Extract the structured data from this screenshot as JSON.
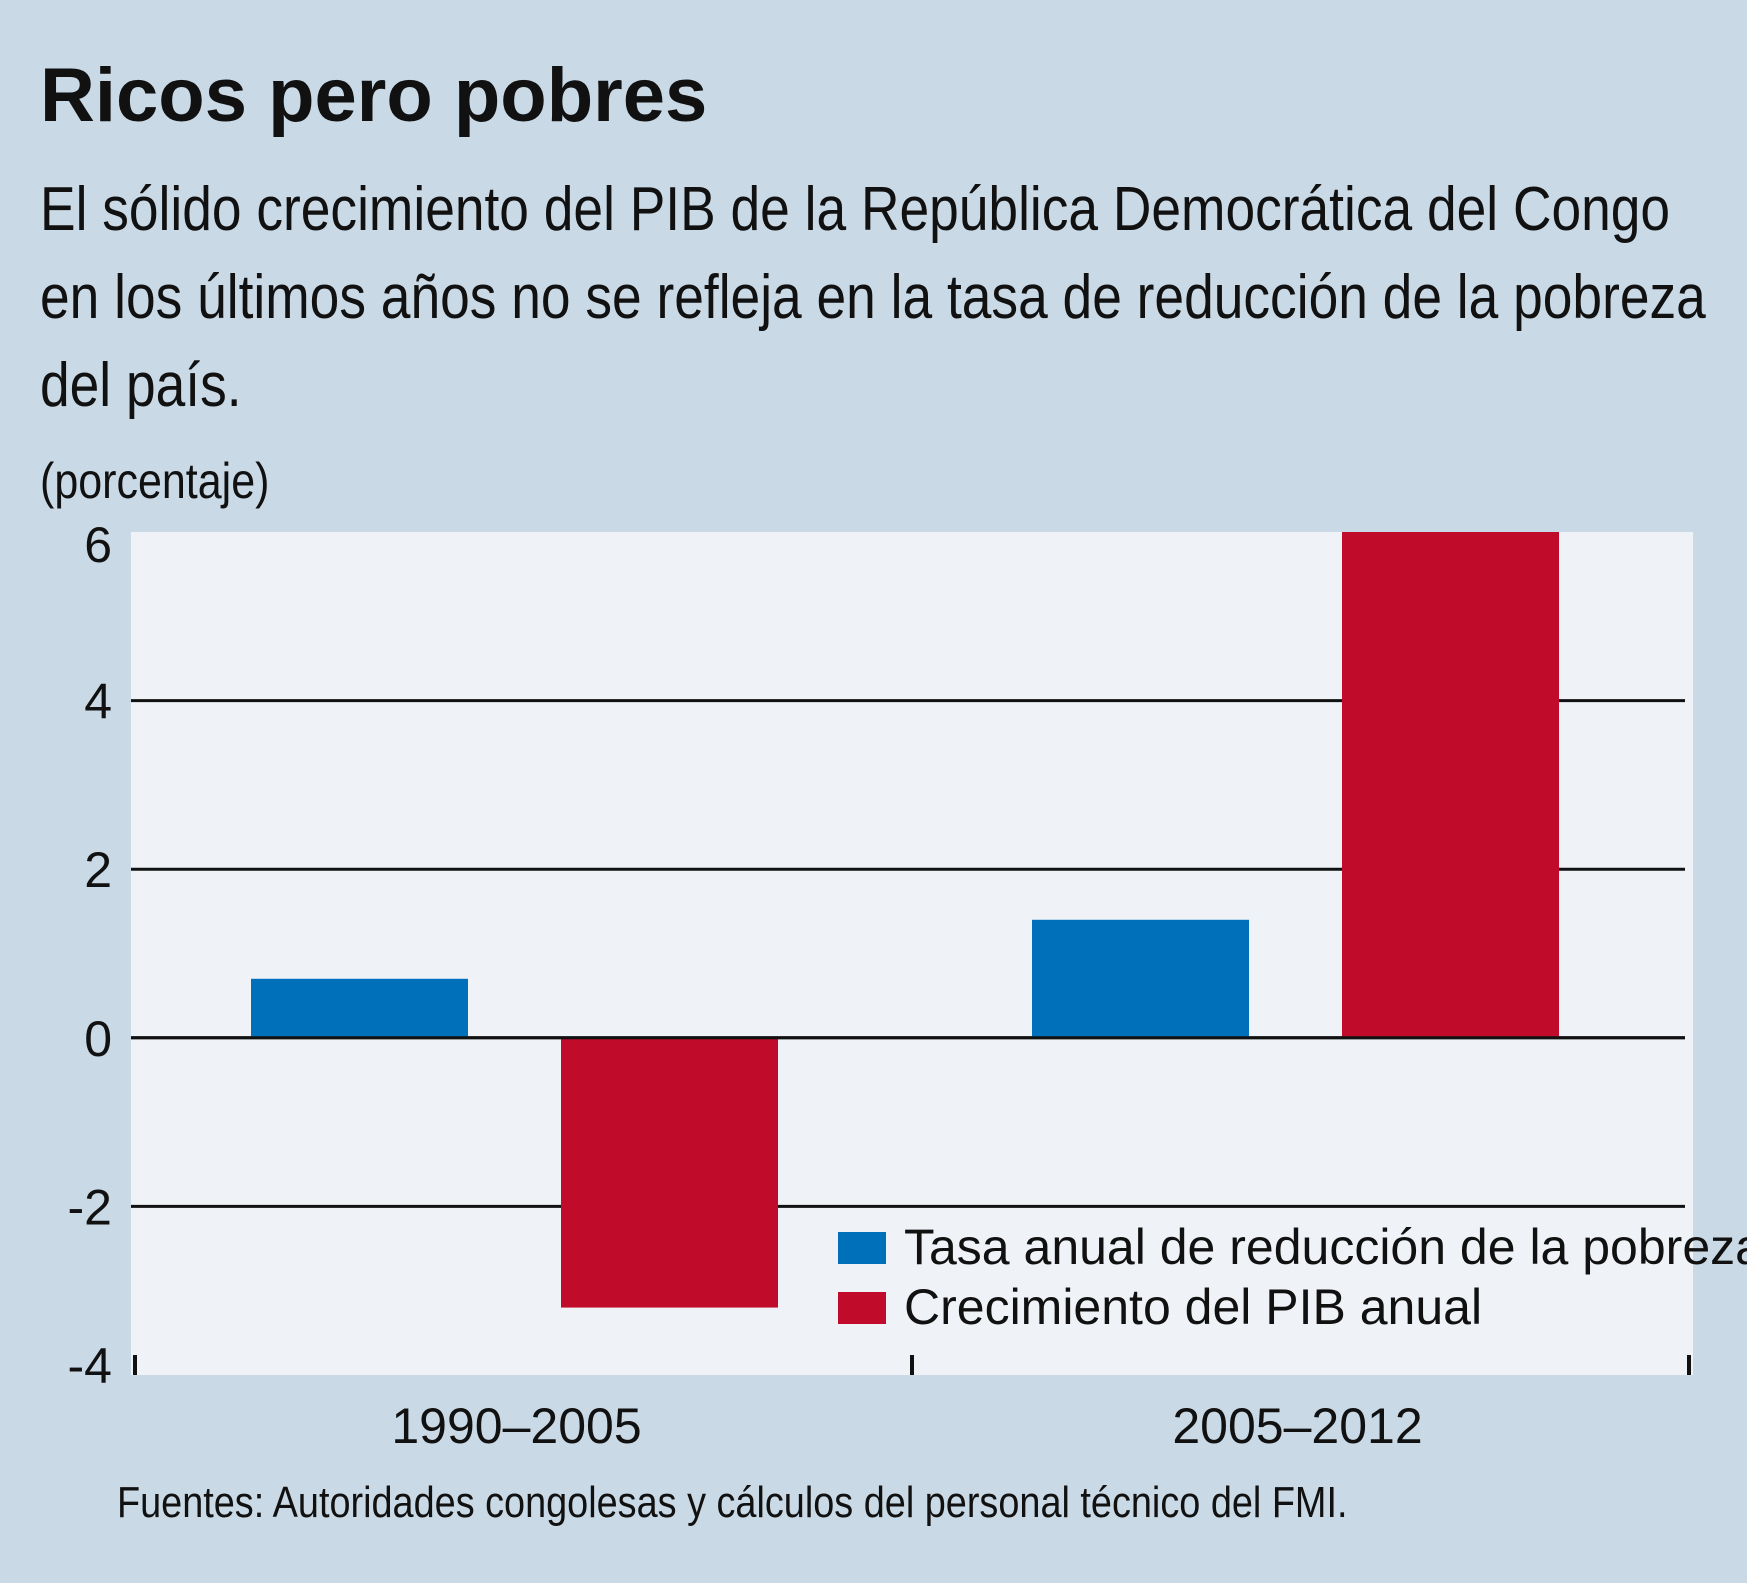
{
  "header": {
    "title": "Ricos pero pobres",
    "subtitle": "El sólido crecimiento del PIB de la República Democrática del Congo en los últimos años no se refleja en la tasa de reducción de la pobreza del país.",
    "unit": "(porcentaje)"
  },
  "footer": {
    "source": "Fuentes: Autoridades congolesas y cálculos del personal técnico del FMI."
  },
  "colors": {
    "background": "#c9d9e5",
    "plot_background": "#eff3f8",
    "series_blue": "#0070ba",
    "series_red": "#c00b2a"
  },
  "chart_data": {
    "type": "bar",
    "categories": [
      "1990–2005",
      "2005–2012"
    ],
    "series": [
      {
        "name": "Tasa anual de reducción de la pobreza",
        "color": "#0070ba",
        "values": [
          0.7,
          1.4
        ]
      },
      {
        "name": "Crecimiento del PIB anual",
        "color": "#c00b2a",
        "values": [
          -3.2,
          6.0
        ]
      }
    ],
    "y_ticks": [
      "6",
      "4",
      "2",
      "0",
      "-2",
      "-4"
    ],
    "ylim": [
      -4,
      6
    ],
    "ylabel": "(porcentaje)",
    "xlabel": "",
    "grid": true,
    "legend_position": "bottom-right"
  }
}
